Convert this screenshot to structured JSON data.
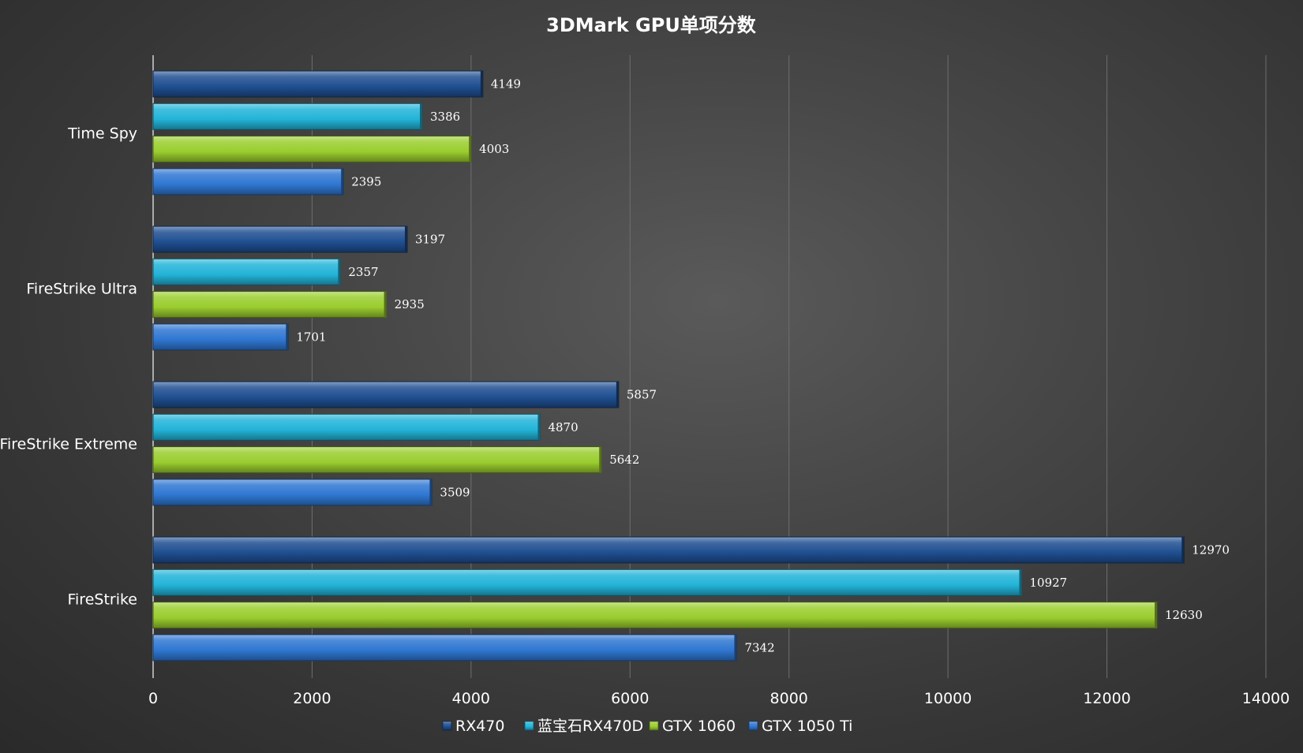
{
  "chart_data": {
    "type": "bar",
    "orientation": "horizontal",
    "title": "3DMark GPU单项分数",
    "categories": [
      "Time Spy",
      "FireStrike Ultra",
      "FireStrike Extreme",
      "FireStrike"
    ],
    "series": [
      {
        "name": "RX470",
        "color": "#1f4f91",
        "values": [
          4149,
          3197,
          5857,
          12970
        ]
      },
      {
        "name": "蓝宝石RX470D",
        "color": "#22b4d8",
        "values": [
          3386,
          2357,
          4870,
          10927
        ]
      },
      {
        "name": "GTX 1060",
        "color": "#9acd2e",
        "values": [
          4003,
          2935,
          5642,
          12630
        ]
      },
      {
        "name": "GTX 1050 Ti",
        "color": "#2f77d2",
        "values": [
          2395,
          1701,
          3509,
          7342
        ]
      }
    ],
    "xlim": [
      0,
      14000
    ],
    "xticks": [
      0,
      2000,
      4000,
      6000,
      8000,
      10000,
      12000,
      14000
    ],
    "xlabel": "",
    "ylabel": "",
    "grid": "vertical",
    "legend": "bottom",
    "data_labels": true
  }
}
